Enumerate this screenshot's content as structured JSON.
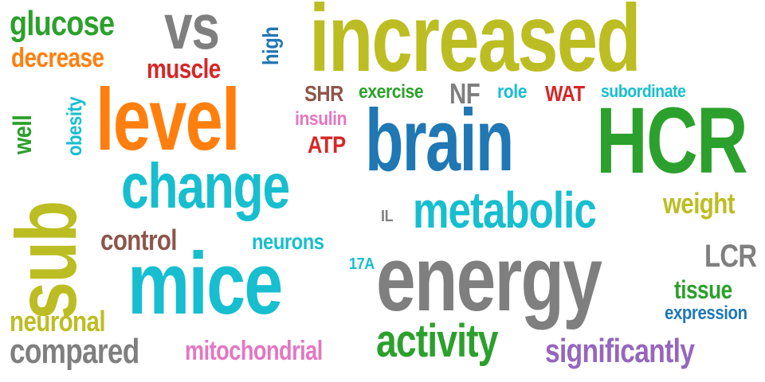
{
  "words": {
    "increased": "increased",
    "brain": "brain",
    "hcr": "HCR",
    "energy": "energy",
    "mice": "mice",
    "level": "level",
    "change": "change",
    "metabolic": "metabolic",
    "sub": "sub",
    "vs": "vs",
    "activity": "activity",
    "significantly": "significantly",
    "compared": "compared",
    "mitochondrial": "mitochondrial",
    "glucose": "glucose",
    "decrease": "decrease",
    "muscle": "muscle",
    "control": "control",
    "neurons": "neurons",
    "neuronal": "neuronal",
    "weight": "weight",
    "lcr": "LCR",
    "tissue": "tissue",
    "expression": "expression",
    "shr": "SHR",
    "exercise": "exercise",
    "nf": "NF",
    "role": "role",
    "wat": "WAT",
    "subordinate": "subordinate",
    "insulin": "insulin",
    "atp": "ATP",
    "il": "IL",
    "a17": "17A",
    "well": "well",
    "obesity": "obesity",
    "high": "high"
  },
  "colors": {
    "olive": "#bcbd22",
    "blue": "#1f77b4",
    "green": "#2ca02c",
    "gray": "#7f7f7f",
    "cyan": "#17becf",
    "orange": "#ff7f0e",
    "red": "#d62728",
    "purple": "#9467bd",
    "brown": "#8c564b",
    "pink": "#e377c2"
  }
}
